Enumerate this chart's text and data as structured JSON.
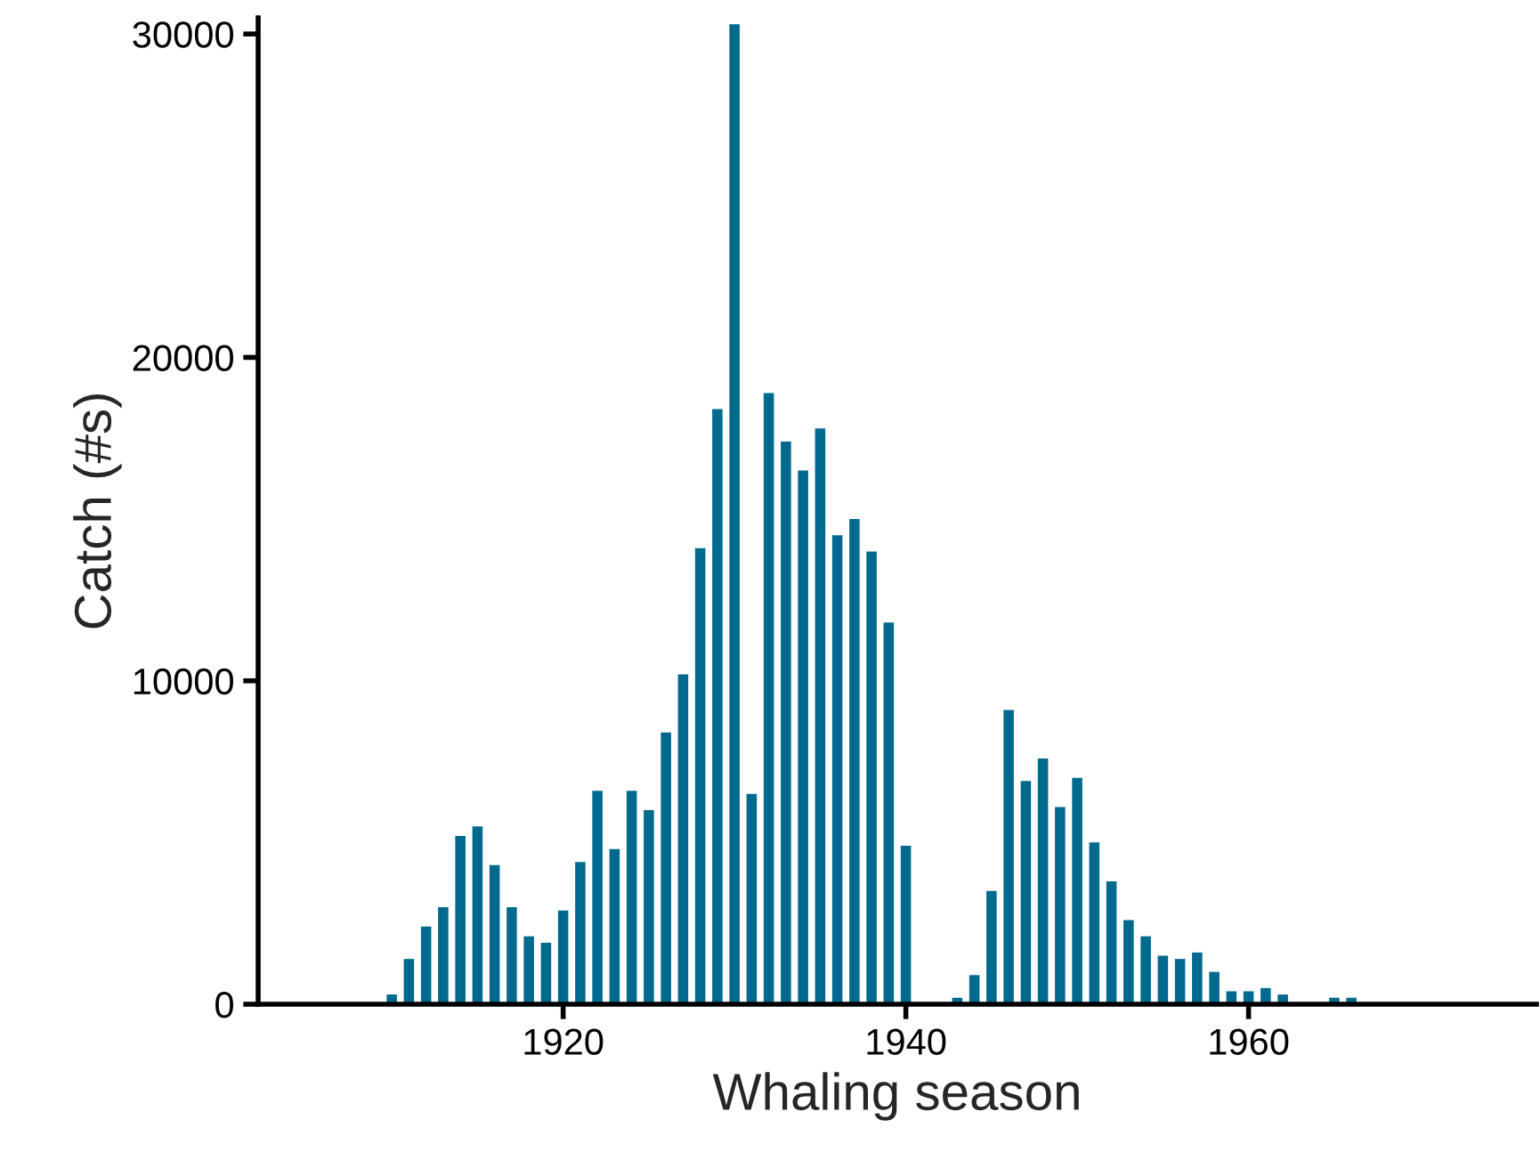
{
  "chart_data": {
    "type": "bar",
    "xlabel": "Whaling season",
    "ylabel": "Catch (#s)",
    "x": [
      1910,
      1911,
      1912,
      1913,
      1914,
      1915,
      1916,
      1917,
      1918,
      1919,
      1920,
      1921,
      1922,
      1923,
      1924,
      1925,
      1926,
      1927,
      1928,
      1929,
      1930,
      1931,
      1932,
      1933,
      1934,
      1935,
      1936,
      1937,
      1938,
      1939,
      1940,
      1943,
      1944,
      1945,
      1946,
      1947,
      1948,
      1949,
      1950,
      1951,
      1952,
      1953,
      1954,
      1955,
      1956,
      1957,
      1958,
      1959,
      1960,
      1961,
      1962,
      1965,
      1966
    ],
    "values": [
      300,
      1400,
      2400,
      3000,
      5200,
      5500,
      4300,
      3000,
      2100,
      1900,
      2900,
      4400,
      6600,
      4800,
      6600,
      6000,
      8400,
      10200,
      14100,
      18400,
      30300,
      6500,
      18900,
      17400,
      16500,
      17800,
      14500,
      15000,
      14000,
      11800,
      4900,
      200,
      900,
      3500,
      9100,
      6900,
      7600,
      6100,
      7000,
      5000,
      3800,
      2600,
      2100,
      1500,
      1400,
      1600,
      1000,
      400,
      400,
      500,
      300,
      200,
      200
    ],
    "color": "#006a8e",
    "xlim": [
      1902.2,
      1976.8
    ],
    "ylim": [
      0,
      30500
    ],
    "xticks": [
      1920,
      1940,
      1960
    ],
    "yticks": [
      0,
      10000,
      20000,
      30000
    ],
    "grid": false
  }
}
